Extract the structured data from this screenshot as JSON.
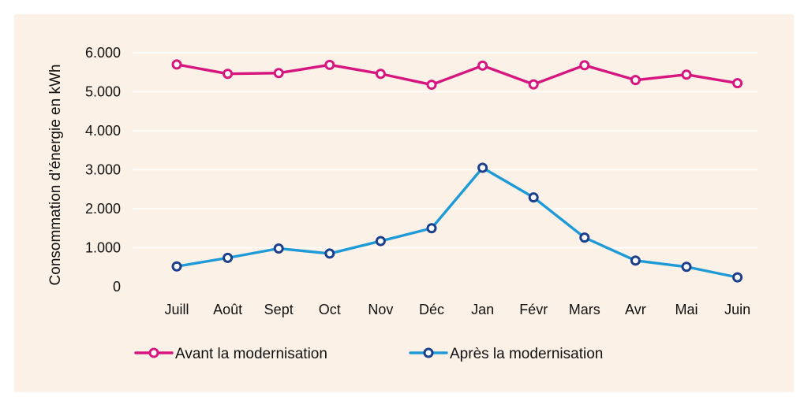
{
  "chart_data": {
    "type": "line",
    "title": "",
    "xlabel": "",
    "ylabel": "Consommation d’énergie en kWh",
    "categories": [
      "Juill",
      "Août",
      "Sept",
      "Oct",
      "Nov",
      "Déc",
      "Jan",
      "Févr",
      "Mars",
      "Avr",
      "Mai",
      "Juin"
    ],
    "ylim": [
      0,
      6000
    ],
    "yticks": [
      0,
      1000,
      2000,
      3000,
      4000,
      5000,
      6000
    ],
    "ytick_labels": [
      "0",
      "1.000",
      "2.000",
      "3.000",
      "4.000",
      "5.000",
      "6.000"
    ],
    "grid": true,
    "legend_position": "bottom",
    "series": [
      {
        "name": "Avant la modernisation",
        "color": "#d6157e",
        "values": [
          5700,
          5460,
          5480,
          5690,
          5460,
          5180,
          5670,
          5190,
          5680,
          5300,
          5440,
          5220
        ]
      },
      {
        "name": "Après la modernisation",
        "color": "#1e9bd7",
        "marker_color": "#1c3f8c",
        "values": [
          520,
          740,
          980,
          850,
          1170,
          1500,
          3050,
          2290,
          1260,
          670,
          510,
          240
        ]
      }
    ]
  }
}
